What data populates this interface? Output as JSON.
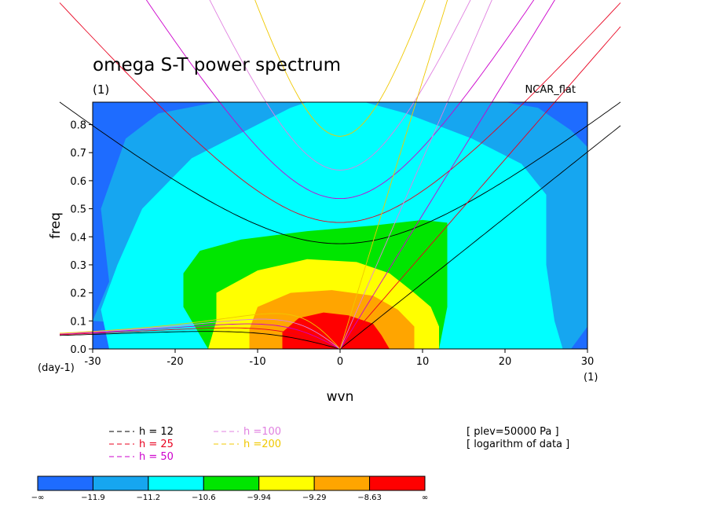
{
  "chart_data": {
    "type": "heatmap",
    "title": "omega S-T power spectrum",
    "subtitle": "(1)",
    "corner_label": "NCAR_flat",
    "xlabel": "wvn",
    "ylabel": "freq",
    "x_unit_left": "(day-1)",
    "x_unit_right": "(1)",
    "xlim": [
      -30,
      30
    ],
    "ylim": [
      0,
      0.88
    ],
    "xticks": [
      "-30",
      "-20",
      "-10",
      "0",
      "10",
      "20",
      "30"
    ],
    "yticks": [
      "0.0",
      "0.1",
      "0.2",
      "0.3",
      "0.4",
      "0.5",
      "0.6",
      "0.7",
      "0.8"
    ],
    "contour_levels": [
      "−∞",
      "−11.9",
      "−11.2",
      "−10.6",
      "−9.94",
      "−9.29",
      "−8.63",
      "∞"
    ],
    "level_colors": [
      "#1e6cff",
      "#16a6f0",
      "#00ffff",
      "#00e600",
      "#ffff00",
      "#ffa500",
      "#ff0000"
    ],
    "dispersion_curves": [
      {
        "label": "h = 12",
        "color": "#000000",
        "equivalent_depth": 12
      },
      {
        "label": "h = 25",
        "color": "#e8001e",
        "equivalent_depth": 25
      },
      {
        "label": "h = 50",
        "color": "#cc00cc",
        "equivalent_depth": 50
      },
      {
        "label": "h =100",
        "color": "#e080e0",
        "equivalent_depth": 100
      },
      {
        "label": "h =200",
        "color": "#f0c800",
        "equivalent_depth": 200
      }
    ],
    "annotations": [
      "[ plev=50000 Pa ]",
      "[ logarithm of data ]"
    ]
  }
}
